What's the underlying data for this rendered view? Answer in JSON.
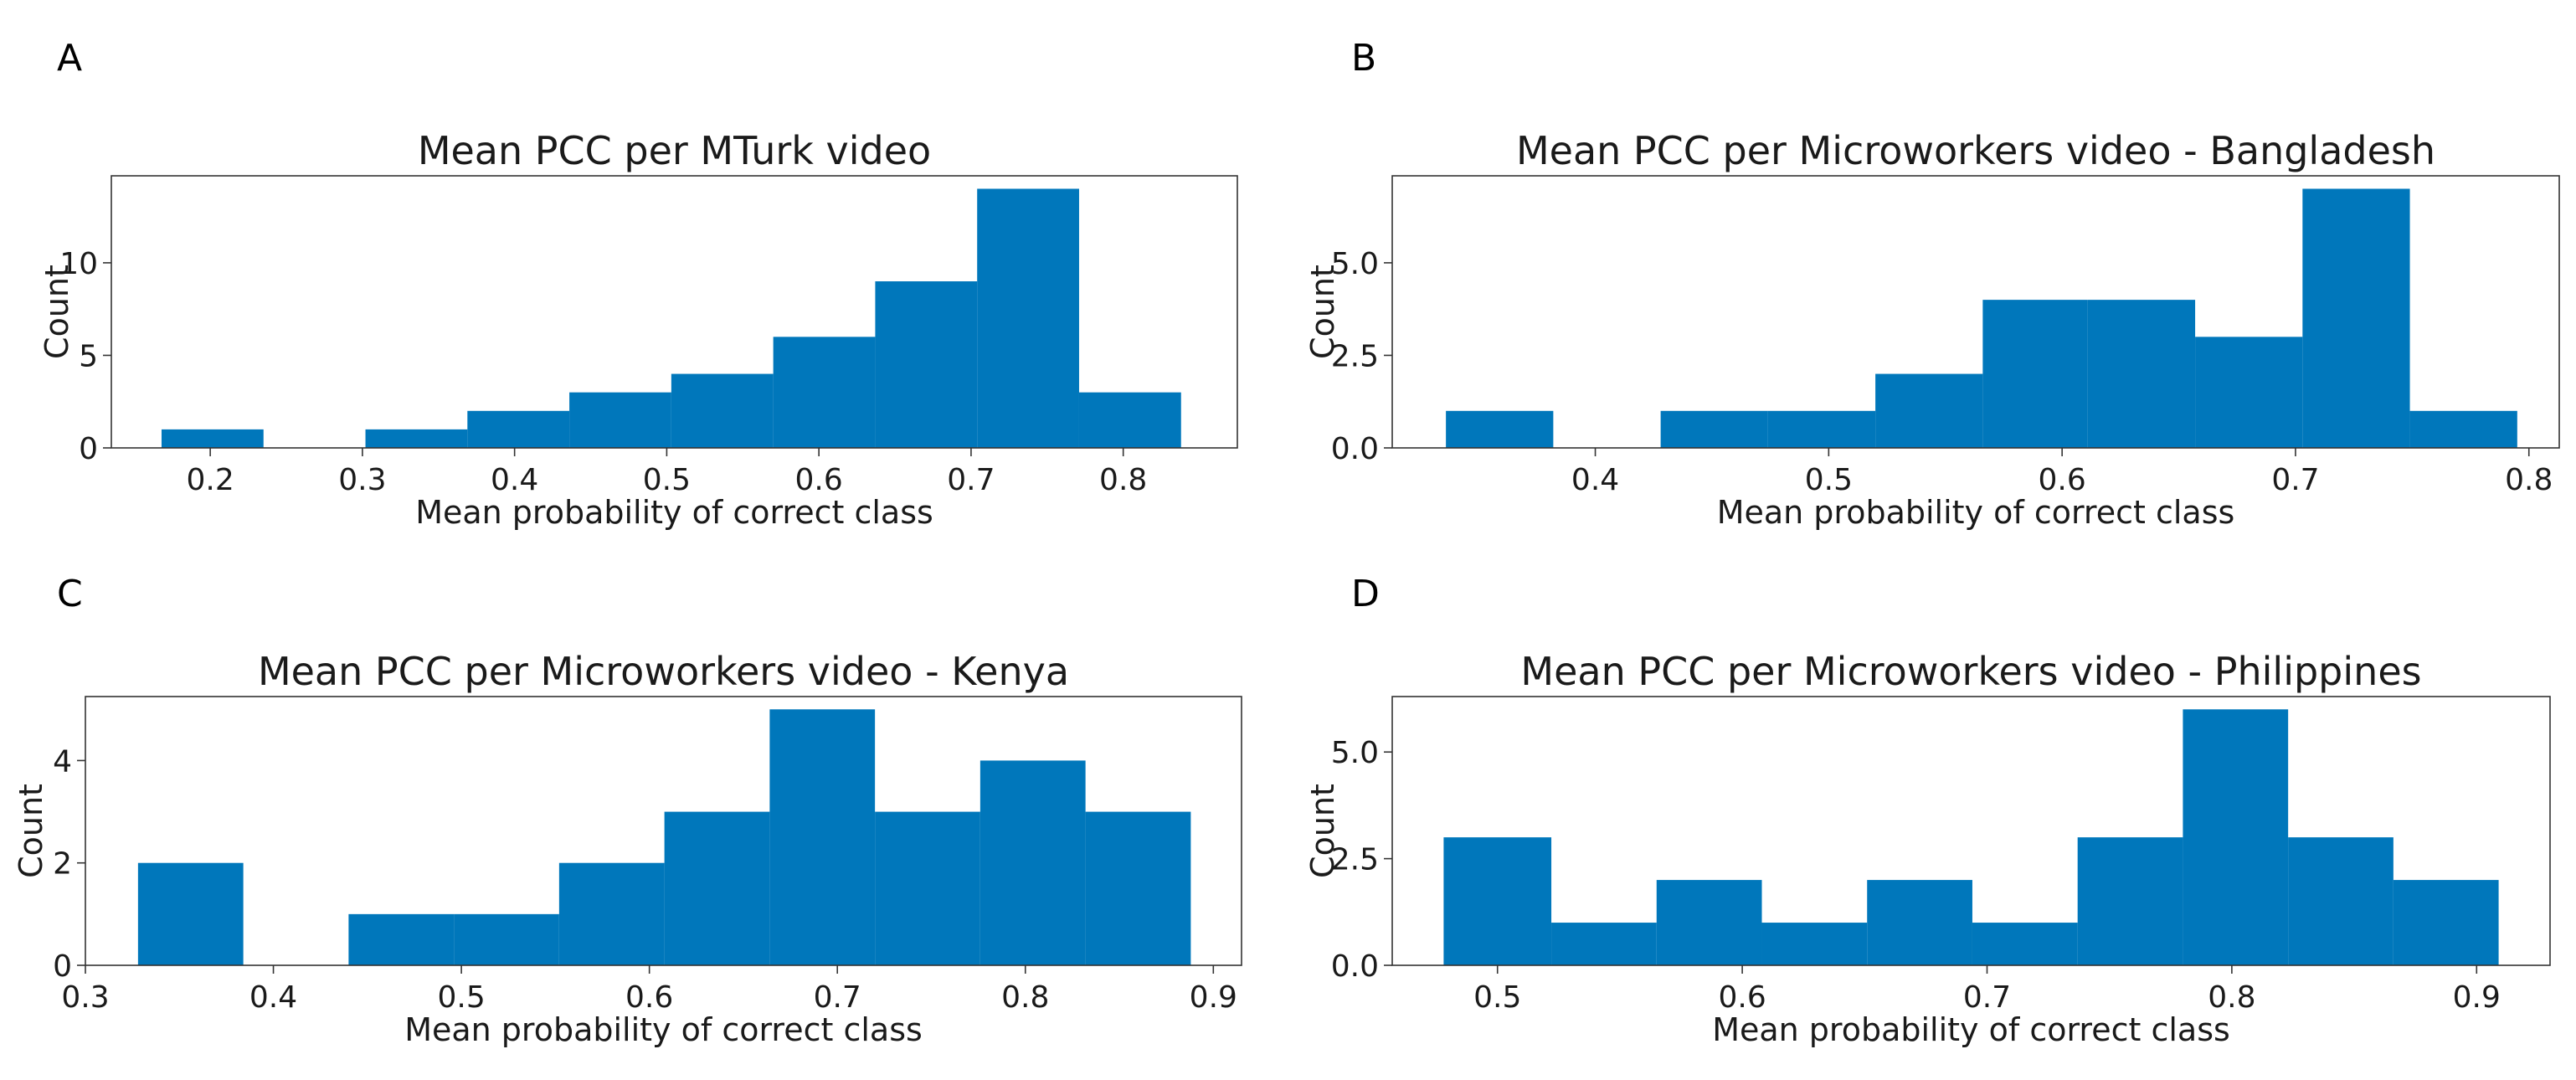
{
  "panels": [
    "A",
    "B",
    "C",
    "D"
  ],
  "bar_color": "#0077bb",
  "chart_data": [
    {
      "type": "bar",
      "title": "Mean PCC per MTurk video",
      "xlabel": "Mean probability of correct class",
      "ylabel": "Count",
      "xlim": [
        0.135,
        0.875
      ],
      "ylim": [
        0,
        14.7
      ],
      "xticks": [
        0.2,
        0.3,
        0.4,
        0.5,
        0.6,
        0.7,
        0.8
      ],
      "xtick_labels": [
        "0.2",
        "0.3",
        "0.4",
        "0.5",
        "0.6",
        "0.7",
        "0.8"
      ],
      "yticks": [
        0,
        5,
        10
      ],
      "ytick_labels": [
        "0",
        "5",
        "10"
      ],
      "bin_edges": [
        0.168,
        0.235,
        0.302,
        0.369,
        0.436,
        0.503,
        0.57,
        0.637,
        0.704,
        0.771,
        0.838
      ],
      "values": [
        1,
        0,
        1,
        2,
        3,
        4,
        6,
        9,
        14,
        3
      ]
    },
    {
      "type": "bar",
      "title": "Mean PCC per Microworkers video - Bangladesh",
      "xlabel": "Mean probability of correct class",
      "ylabel": "Count",
      "xlim": [
        0.313,
        0.813
      ],
      "ylim": [
        0,
        7.35
      ],
      "xticks": [
        0.4,
        0.5,
        0.6,
        0.7,
        0.8
      ],
      "xtick_labels": [
        "0.4",
        "0.5",
        "0.6",
        "0.7",
        "0.8"
      ],
      "yticks": [
        0,
        2.5,
        5
      ],
      "ytick_labels": [
        "0.0",
        "2.5",
        "5.0"
      ],
      "bin_edges": [
        0.336,
        0.382,
        0.428,
        0.474,
        0.52,
        0.566,
        0.611,
        0.657,
        0.703,
        0.749,
        0.795
      ],
      "values": [
        1,
        0,
        1,
        1,
        2,
        4,
        4,
        3,
        7,
        1
      ]
    },
    {
      "type": "bar",
      "title": "Mean PCC per Microworkers video - Kenya",
      "xlabel": "Mean probability of correct class",
      "ylabel": "Count",
      "xlim": [
        0.3,
        0.915
      ],
      "ylim": [
        0,
        5.25
      ],
      "xticks": [
        0.3,
        0.4,
        0.5,
        0.6,
        0.7,
        0.8,
        0.9
      ],
      "xtick_labels": [
        "0.3",
        "0.4",
        "0.5",
        "0.6",
        "0.7",
        "0.8",
        "0.9"
      ],
      "yticks": [
        0,
        2,
        4
      ],
      "ytick_labels": [
        "0",
        "2",
        "4"
      ],
      "bin_edges": [
        0.328,
        0.384,
        0.44,
        0.496,
        0.552,
        0.608,
        0.664,
        0.72,
        0.776,
        0.832,
        0.888
      ],
      "values": [
        2,
        0,
        1,
        1,
        2,
        3,
        5,
        3,
        4,
        3
      ]
    },
    {
      "type": "bar",
      "title": "Mean PCC per Microworkers video - Philippines",
      "xlabel": "Mean probability of correct class",
      "ylabel": "Count",
      "xlim": [
        0.457,
        0.93
      ],
      "ylim": [
        0,
        6.3
      ],
      "xticks": [
        0.5,
        0.6,
        0.7,
        0.8,
        0.9
      ],
      "xtick_labels": [
        "0.5",
        "0.6",
        "0.7",
        "0.8",
        "0.9"
      ],
      "yticks": [
        0,
        2.5,
        5
      ],
      "ytick_labels": [
        "0.0",
        "2.5",
        "5.0"
      ],
      "bin_edges": [
        0.478,
        0.522,
        0.565,
        0.608,
        0.651,
        0.694,
        0.737,
        0.78,
        0.823,
        0.866,
        0.909
      ],
      "values": [
        3,
        1,
        2,
        1,
        2,
        1,
        3,
        6,
        3,
        2
      ]
    }
  ]
}
